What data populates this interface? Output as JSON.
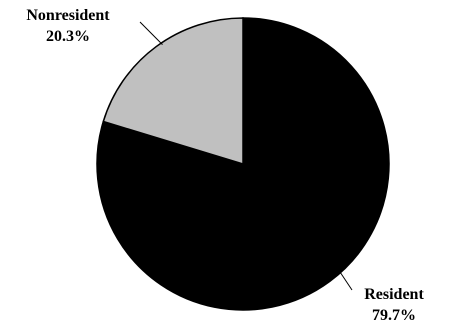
{
  "chart_data": {
    "type": "pie",
    "title": "",
    "legend": "none",
    "slices": [
      {
        "name": "Resident",
        "value": 79.7,
        "value_label": "79.7%",
        "color": "#000000"
      },
      {
        "name": "Nonresident",
        "value": 20.3,
        "value_label": "20.3%",
        "color": "#c0c0c0"
      }
    ],
    "start_angle_deg": 0,
    "direction": "clockwise",
    "edge_color": "#000000"
  }
}
